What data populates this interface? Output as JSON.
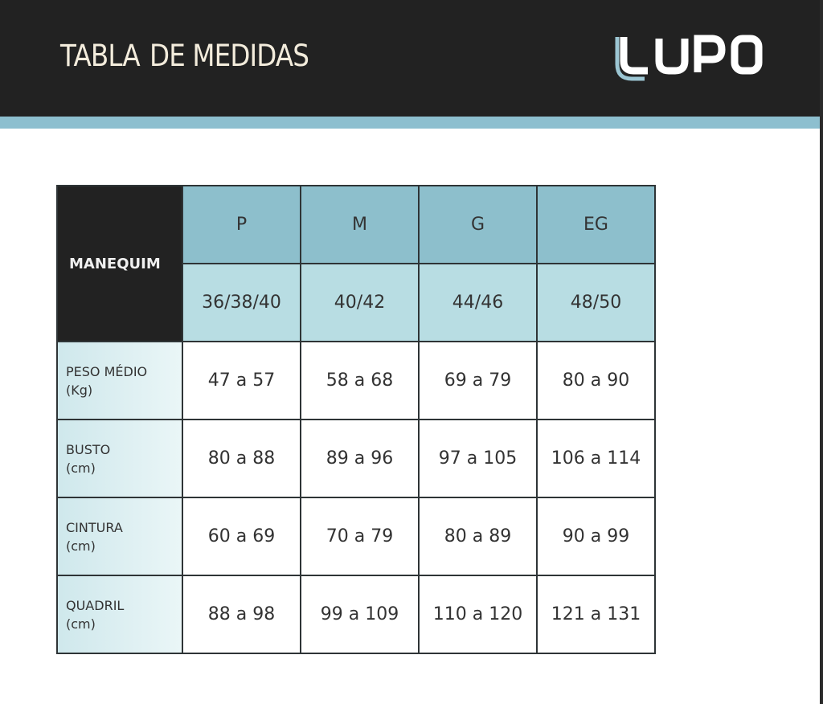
{
  "header": {
    "title_part1": "TABLA",
    "title_part2": "DE MEDIDAS",
    "logo_text": "LUPO"
  },
  "table": {
    "corner_label": "MANEQUIM",
    "sizes": [
      "P",
      "M",
      "G",
      "EG"
    ],
    "numbers": [
      "36/38/40",
      "40/42",
      "44/46",
      "48/50"
    ],
    "rows": [
      {
        "label": "PESO MÉDIO",
        "unit": "(Kg)",
        "values": [
          "47 a 57",
          "58 a 68",
          "69 a 79",
          "80 a 90"
        ]
      },
      {
        "label": "BUSTO",
        "unit": "(cm)",
        "values": [
          "80 a 88",
          "89 a 96",
          "97 a 105",
          "106 a 114"
        ]
      },
      {
        "label": "CINTURA",
        "unit": "(cm)",
        "values": [
          "60 a 69",
          "70 a 79",
          "80 a 89",
          "90 a 99"
        ]
      },
      {
        "label": "QUADRIL",
        "unit": "(cm)",
        "values": [
          "88 a 98",
          "99 a 109",
          "110 a 120",
          "121 a 131"
        ]
      }
    ]
  },
  "colors": {
    "header_bg": "#222222",
    "accent_stripe": "#8dbfcf",
    "size_header": "#8dbfcc",
    "number_header": "#b8dde3"
  }
}
